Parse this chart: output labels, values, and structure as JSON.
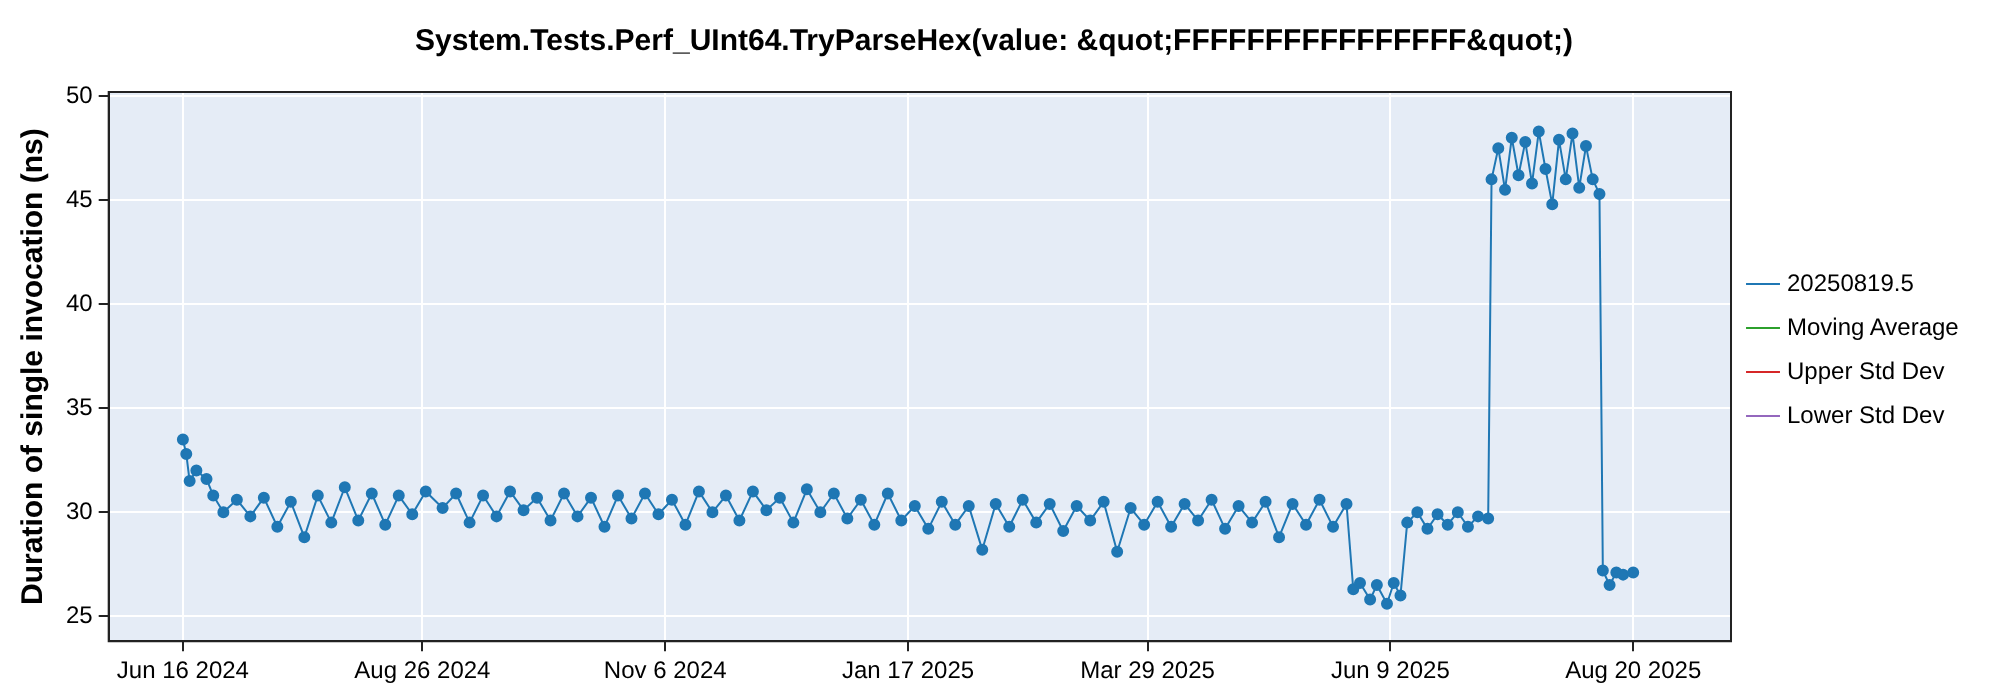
{
  "chart_data": {
    "type": "line",
    "title": "System.Tests.Perf_UInt64.TryParseHex(value: &quot;FFFFFFFFFFFFFFFF&quot;)",
    "ylabel": "Duration of single invocation (ns)",
    "xlim": [
      "2024-05-25",
      "2025-09-18"
    ],
    "xticks": [
      {
        "value": "2024-06-16",
        "label": "Jun 16 2024"
      },
      {
        "value": "2024-08-26",
        "label": "Aug 26 2024"
      },
      {
        "value": "2024-11-06",
        "label": "Nov 6 2024"
      },
      {
        "value": "2025-01-17",
        "label": "Jan 17 2025"
      },
      {
        "value": "2025-03-29",
        "label": "Mar 29 2025"
      },
      {
        "value": "2025-06-09",
        "label": "Jun 9 2025"
      },
      {
        "value": "2025-08-20",
        "label": "Aug 20 2025"
      }
    ],
    "ylim": [
      23.8,
      50.2
    ],
    "yticks": [
      25,
      30,
      35,
      40,
      45,
      50
    ],
    "grid": true,
    "legend": "right",
    "marker": "circle",
    "line_style": "solid",
    "x": [
      "2024-06-16",
      "2024-06-17",
      "2024-06-18",
      "2024-06-20",
      "2024-06-23",
      "2024-06-25",
      "2024-06-28",
      "2024-07-02",
      "2024-07-06",
      "2024-07-10",
      "2024-07-14",
      "2024-07-18",
      "2024-07-22",
      "2024-07-26",
      "2024-07-30",
      "2024-08-03",
      "2024-08-07",
      "2024-08-11",
      "2024-08-15",
      "2024-08-19",
      "2024-08-23",
      "2024-08-27",
      "2024-09-01",
      "2024-09-05",
      "2024-09-09",
      "2024-09-13",
      "2024-09-17",
      "2024-09-21",
      "2024-09-25",
      "2024-09-29",
      "2024-10-03",
      "2024-10-07",
      "2024-10-11",
      "2024-10-15",
      "2024-10-19",
      "2024-10-23",
      "2024-10-27",
      "2024-10-31",
      "2024-11-04",
      "2024-11-08",
      "2024-11-12",
      "2024-11-16",
      "2024-11-20",
      "2024-11-24",
      "2024-11-28",
      "2024-12-02",
      "2024-12-06",
      "2024-12-10",
      "2024-12-14",
      "2024-12-18",
      "2024-12-22",
      "2024-12-26",
      "2024-12-30",
      "2025-01-03",
      "2025-01-07",
      "2025-01-11",
      "2025-01-15",
      "2025-01-19",
      "2025-01-23",
      "2025-01-27",
      "2025-01-31",
      "2025-02-04",
      "2025-02-08",
      "2025-02-12",
      "2025-02-16",
      "2025-02-20",
      "2025-02-24",
      "2025-02-28",
      "2025-03-04",
      "2025-03-08",
      "2025-03-12",
      "2025-03-16",
      "2025-03-20",
      "2025-03-24",
      "2025-03-28",
      "2025-04-01",
      "2025-04-05",
      "2025-04-09",
      "2025-04-13",
      "2025-04-17",
      "2025-04-21",
      "2025-04-25",
      "2025-04-29",
      "2025-05-03",
      "2025-05-07",
      "2025-05-11",
      "2025-05-15",
      "2025-05-19",
      "2025-05-23",
      "2025-05-27",
      "2025-05-29",
      "2025-05-31",
      "2025-06-03",
      "2025-06-05",
      "2025-06-08",
      "2025-06-10",
      "2025-06-12",
      "2025-06-14",
      "2025-06-17",
      "2025-06-20",
      "2025-06-23",
      "2025-06-26",
      "2025-06-29",
      "2025-07-02",
      "2025-07-05",
      "2025-07-08",
      "2025-07-09",
      "2025-07-11",
      "2025-07-13",
      "2025-07-15",
      "2025-07-17",
      "2025-07-19",
      "2025-07-21",
      "2025-07-23",
      "2025-07-25",
      "2025-07-27",
      "2025-07-29",
      "2025-07-31",
      "2025-08-02",
      "2025-08-04",
      "2025-08-06",
      "2025-08-08",
      "2025-08-10",
      "2025-08-11",
      "2025-08-13",
      "2025-08-15",
      "2025-08-17",
      "2025-08-20"
    ],
    "series": [
      {
        "name": "20250819.5",
        "color": "#1f77b4",
        "values": [
          33.5,
          32.8,
          31.5,
          32,
          31.6,
          30.8,
          30.0,
          30.6,
          29.8,
          30.7,
          29.3,
          30.5,
          28.8,
          30.8,
          29.5,
          31.2,
          29.6,
          30.9,
          29.4,
          30.8,
          29.9,
          31.0,
          30.2,
          30.9,
          29.5,
          30.8,
          29.8,
          31.0,
          30.1,
          30.7,
          29.6,
          30.9,
          29.8,
          30.7,
          29.3,
          30.8,
          29.7,
          30.9,
          29.9,
          30.6,
          29.4,
          31.0,
          30.0,
          30.8,
          29.6,
          31.0,
          30.1,
          30.7,
          29.5,
          31.1,
          30.0,
          30.9,
          29.7,
          30.6,
          29.4,
          30.9,
          29.6,
          30.3,
          29.2,
          30.5,
          29.4,
          30.3,
          28.2,
          30.4,
          29.3,
          30.6,
          29.5,
          30.4,
          29.1,
          30.3,
          29.6,
          30.5,
          28.1,
          30.2,
          29.4,
          30.5,
          29.3,
          30.4,
          29.6,
          30.6,
          29.2,
          30.3,
          29.5,
          30.5,
          28.8,
          30.4,
          29.4,
          30.6,
          29.3,
          30.4,
          26.3,
          26.6,
          25.8,
          26.5,
          25.6,
          26.6,
          26.0,
          29.5,
          30.0,
          29.2,
          29.9,
          29.4,
          30.0,
          29.3,
          29.8,
          29.7,
          46.0,
          47.5,
          45.5,
          48.0,
          46.2,
          47.8,
          45.8,
          48.3,
          46.5,
          44.8,
          47.9,
          46.0,
          48.2,
          45.6,
          47.6,
          46.0,
          45.3,
          27.2,
          26.5,
          27.1,
          27.0,
          27.1
        ]
      },
      {
        "name": "Moving Average",
        "color": "#2ca02c",
        "values": [
          null,
          null,
          null,
          null,
          null,
          null,
          null,
          null,
          null,
          null,
          null,
          null,
          null,
          null,
          null,
          null,
          null,
          null,
          null,
          null,
          null,
          null,
          null,
          null,
          null,
          null,
          null,
          null,
          null,
          null,
          null,
          null,
          null,
          null,
          null,
          null,
          null,
          null,
          null,
          null,
          null,
          null,
          null,
          null,
          null,
          null,
          null,
          null,
          null,
          null,
          null,
          null,
          null,
          null,
          null,
          null,
          null,
          null,
          null,
          null,
          null,
          null,
          null,
          null,
          null,
          null,
          null,
          null,
          null,
          null,
          null,
          null,
          null,
          null,
          null,
          null,
          null,
          null,
          null,
          null,
          null,
          null,
          null,
          null,
          null,
          null,
          null,
          null,
          null,
          null,
          null,
          null,
          null,
          null,
          null,
          null,
          null,
          null,
          null,
          null,
          null,
          null,
          null,
          null,
          null,
          null,
          null,
          null,
          null,
          null,
          null,
          null,
          null,
          null,
          null,
          null,
          null,
          null,
          null,
          null,
          null,
          null,
          null,
          null,
          null,
          null,
          null,
          null
        ]
      },
      {
        "name": "Upper Std Dev",
        "color": "#d62728",
        "values": [
          null,
          null,
          null,
          null,
          null,
          null,
          null,
          null,
          null,
          null,
          null,
          null,
          null,
          null,
          null,
          null,
          null,
          null,
          null,
          null,
          null,
          null,
          null,
          null,
          null,
          null,
          null,
          null,
          null,
          null,
          null,
          null,
          null,
          null,
          null,
          null,
          null,
          null,
          null,
          null,
          null,
          null,
          null,
          null,
          null,
          null,
          null,
          null,
          null,
          null,
          null,
          null,
          null,
          null,
          null,
          null,
          null,
          null,
          null,
          null,
          null,
          null,
          null,
          null,
          null,
          null,
          null,
          null,
          null,
          null,
          null,
          null,
          null,
          null,
          null,
          null,
          null,
          null,
          null,
          null,
          null,
          null,
          null,
          null,
          null,
          null,
          null,
          null,
          null,
          null,
          null,
          null,
          null,
          null,
          null,
          null,
          null,
          null,
          null,
          null,
          null,
          null,
          null,
          null,
          null,
          null,
          null,
          null,
          null,
          null,
          null,
          null,
          null,
          null,
          null,
          null,
          null,
          null,
          null,
          null,
          null,
          null,
          null,
          null,
          null,
          null,
          null,
          null
        ]
      },
      {
        "name": "Lower Std Dev",
        "color": "#9467bd",
        "values": [
          null,
          null,
          null,
          null,
          null,
          null,
          null,
          null,
          null,
          null,
          null,
          null,
          null,
          null,
          null,
          null,
          null,
          null,
          null,
          null,
          null,
          null,
          null,
          null,
          null,
          null,
          null,
          null,
          null,
          null,
          null,
          null,
          null,
          null,
          null,
          null,
          null,
          null,
          null,
          null,
          null,
          null,
          null,
          null,
          null,
          null,
          null,
          null,
          null,
          null,
          null,
          null,
          null,
          null,
          null,
          null,
          null,
          null,
          null,
          null,
          null,
          null,
          null,
          null,
          null,
          null,
          null,
          null,
          null,
          null,
          null,
          null,
          null,
          null,
          null,
          null,
          null,
          null,
          null,
          null,
          null,
          null,
          null,
          null,
          null,
          null,
          null,
          null,
          null,
          null,
          null,
          null,
          null,
          null,
          null,
          null,
          null,
          null,
          null,
          null,
          null,
          null,
          null,
          null,
          null,
          null,
          null,
          null,
          null,
          null,
          null,
          null,
          null,
          null,
          null,
          null,
          null,
          null,
          null,
          null,
          null,
          null,
          null,
          null,
          null,
          null,
          null,
          null
        ]
      }
    ]
  }
}
